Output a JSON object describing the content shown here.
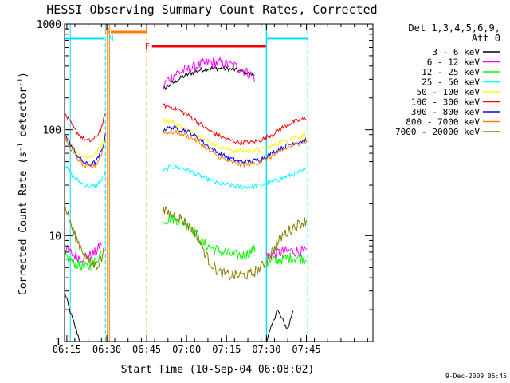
{
  "chart_data": {
    "type": "line",
    "title": "HESSI Observing Summary Count Rates, Corrected",
    "xlabel": "Start Time (10-Sep-04 06:08:02)",
    "ylabel": "Corrected Count Rate (s⁻¹ detector⁻¹)",
    "ylabel_parts": [
      "Corrected Count Rate (s",
      "-1",
      " detector",
      "-1",
      ")"
    ],
    "yscale": "log",
    "ylim": [
      1,
      1000
    ],
    "xlim_minutes": [
      6.133,
      122.0
    ],
    "x_unit": "minutes since 06:08",
    "x_ticks": [
      {
        "label": "06:15",
        "value": 7
      },
      {
        "label": "06:30",
        "value": 22
      },
      {
        "label": "06:45",
        "value": 37
      },
      {
        "label": "07:00",
        "value": 52
      },
      {
        "label": "07:15",
        "value": 67
      },
      {
        "label": "07:30",
        "value": 82
      },
      {
        "label": "07:45",
        "value": 97
      }
    ],
    "y_ticks": [
      {
        "label": "1",
        "value": 1
      },
      {
        "label": "10",
        "value": 10
      },
      {
        "label": "100",
        "value": 100
      },
      {
        "label": "1000",
        "value": 1000
      }
    ],
    "legend_header": [
      "Det 1,3,4,5,6,9,",
      "Att 0"
    ],
    "legend_position": "right",
    "markers": [
      {
        "label": "S",
        "color": "#ff8000"
      },
      {
        "label": "N",
        "color": "#00e0ff"
      },
      {
        "label": "F",
        "color": "#ff0000"
      }
    ],
    "timestamp": "9-Dec-2009 05:45",
    "series": [
      {
        "name": "3 - 6 keV",
        "color": "#000000",
        "segments": [
          {
            "x": [
              6.1,
              8,
              10,
              12
            ],
            "y": [
              3,
              2,
              1.4,
              1
            ]
          },
          {
            "x": [
              43,
              48,
              52,
              56,
              60,
              65,
              70,
              74,
              77.5
            ],
            "y": [
              240,
              290,
              330,
              360,
              380,
              380,
              370,
              350,
              330
            ]
          },
          {
            "x": [
              82,
              84,
              86,
              88,
              90,
              92
            ],
            "y": [
              1,
              1.4,
              2,
              1.6,
              1.3,
              2
            ]
          }
        ]
      },
      {
        "name": "6 - 12 keV",
        "color": "#ff00ff",
        "segments": [
          {
            "x": [
              6.1,
              8,
              10,
              12,
              14,
              16,
              18,
              20
            ],
            "y": [
              7.5,
              7,
              6.5,
              6.2,
              6.3,
              6.5,
              7,
              8.5
            ]
          },
          {
            "x": [
              43,
              45,
              48,
              52,
              56,
              60,
              65,
              70,
              74,
              77.5
            ],
            "y": [
              250,
              300,
              340,
              370,
              400,
              430,
              430,
              400,
              360,
              310
            ]
          },
          {
            "x": [
              82,
              85,
              88,
              91,
              94,
              97
            ],
            "y": [
              6.5,
              6.8,
              7,
              7.2,
              7.1,
              7
            ]
          }
        ]
      },
      {
        "name": "12 - 25 keV",
        "color": "#00ff00",
        "segments": [
          {
            "x": [
              6.1,
              8,
              10,
              12,
              14,
              16,
              18,
              20
            ],
            "y": [
              6.5,
              6,
              5.5,
              5.2,
              5,
              5.2,
              5.8,
              7
            ]
          },
          {
            "x": [
              43,
              46,
              50,
              54,
              58,
              62,
              66,
              70,
              74,
              78
            ],
            "y": [
              14,
              14.5,
              14,
              12,
              8.5,
              7.5,
              7,
              6.5,
              6.6,
              7.5
            ]
          },
          {
            "x": [
              82,
              85,
              88,
              91,
              94,
              97
            ],
            "y": [
              5.5,
              5.8,
              6,
              6.2,
              6.2,
              6
            ]
          }
        ]
      },
      {
        "name": "25 - 50 keV",
        "color": "#00ffff",
        "segments": [
          {
            "x": [
              6.1,
              8,
              10,
              12,
              14,
              16,
              18,
              20,
              21.5
            ],
            "y": [
              48,
              40,
              35,
              32,
              30,
              29,
              30,
              33,
              40
            ]
          },
          {
            "x": [
              43,
              46,
              49,
              52,
              56,
              60,
              64,
              68,
              72,
              76,
              80,
              84,
              88,
              92,
              97
            ],
            "y": [
              40,
              45,
              44,
              42,
              38,
              34,
              31,
              30,
              29,
              29,
              30,
              32,
              35,
              38,
              42
            ]
          }
        ]
      },
      {
        "name": "50 - 100 keV",
        "color": "#ffff00",
        "segments": [
          {
            "x": [
              6.1,
              8,
              10,
              12,
              14,
              16,
              18,
              20,
              21.5
            ],
            "y": [
              88,
              75,
              65,
              58,
              55,
              55,
              60,
              72,
              95
            ]
          },
          {
            "x": [
              43,
              46,
              49,
              52,
              56,
              60,
              64,
              68,
              72,
              76,
              80,
              84,
              88,
              92,
              97
            ],
            "y": [
              125,
              120,
              110,
              100,
              90,
              78,
              70,
              65,
              63,
              63,
              65,
              70,
              78,
              85,
              90
            ]
          }
        ]
      },
      {
        "name": "100 - 300 keV",
        "color": "#ff0000",
        "segments": [
          {
            "x": [
              6.1,
              8,
              10,
              12,
              14,
              16,
              18,
              20,
              21.5
            ],
            "y": [
              145,
              120,
              100,
              88,
              80,
              78,
              85,
              105,
              140
            ]
          },
          {
            "x": [
              43,
              46,
              49,
              52,
              56,
              60,
              64,
              68,
              72,
              76,
              80,
              84,
              88,
              92,
              97
            ],
            "y": [
              170,
              165,
              155,
              140,
              120,
              100,
              88,
              80,
              76,
              76,
              80,
              90,
              105,
              118,
              128
            ]
          }
        ]
      },
      {
        "name": "300 - 800 keV",
        "color": "#0000ff",
        "segments": [
          {
            "x": [
              6.1,
              8,
              10,
              12,
              14,
              16,
              18,
              20,
              21.5
            ],
            "y": [
              92,
              75,
              62,
              53,
              48,
              47,
              50,
              62,
              88
            ]
          },
          {
            "x": [
              43,
              46,
              49,
              52,
              56,
              60,
              64,
              68,
              72,
              76,
              80,
              84,
              88,
              92,
              97
            ],
            "y": [
              100,
              105,
              102,
              98,
              85,
              70,
              60,
              54,
              50,
              50,
              53,
              60,
              68,
              75,
              80
            ]
          }
        ]
      },
      {
        "name": "800 - 7000 keV",
        "color": "#ff8000",
        "segments": [
          {
            "x": [
              6.1,
              8,
              10,
              12,
              14,
              16,
              18,
              20,
              21.5
            ],
            "y": [
              85,
              70,
              58,
              50,
              45,
              44,
              47,
              58,
              82
            ]
          },
          {
            "x": [
              43,
              46,
              49,
              52,
              56,
              60,
              64,
              68,
              72,
              76,
              80,
              84,
              88,
              92,
              97
            ],
            "y": [
              93,
              95,
              93,
              88,
              78,
              65,
              56,
              50,
              47,
              47,
              50,
              56,
              64,
              72,
              78
            ]
          }
        ]
      },
      {
        "name": "7000 - 20000 keV",
        "color": "#808000",
        "segments": [
          {
            "x": [
              6.1,
              8,
              10,
              12,
              14,
              16,
              18,
              20,
              21.5
            ],
            "y": [
              20,
              14,
              10,
              8,
              6.5,
              5.5,
              5.2,
              6,
              8
            ]
          },
          {
            "x": [
              43,
              46,
              49,
              52,
              56,
              60,
              64,
              68,
              72,
              76,
              80,
              84,
              88,
              92,
              97
            ],
            "y": [
              17,
              16,
              15,
              13,
              10,
              6,
              4.5,
              4.2,
              4.2,
              4.3,
              5,
              7,
              10,
              12,
              14
            ]
          }
        ]
      }
    ]
  }
}
